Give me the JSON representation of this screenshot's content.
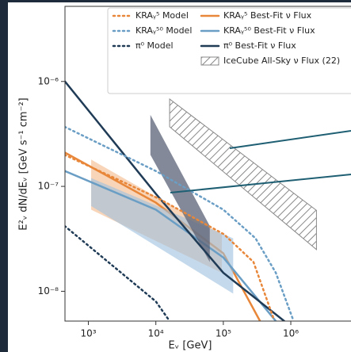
{
  "chart_data": {
    "type": "line",
    "x_label": "Eᵥ [GeV]",
    "y_label": "E²ᵥ dN/dEᵥ [GeV s⁻¹ cm⁻²]",
    "log_x": true,
    "log_y": true,
    "xlim": [
      450,
      7800000
    ],
    "ylim": [
      5.2e-09,
      5.2e-06
    ],
    "xticks": [
      {
        "value": 1000,
        "label": "10³"
      },
      {
        "value": 10000,
        "label": "10⁴"
      },
      {
        "value": 100000,
        "label": "10⁵"
      },
      {
        "value": 1000000,
        "label": "10⁶"
      }
    ],
    "yticks": [
      {
        "value": 1e-08,
        "label": "10⁻⁸"
      },
      {
        "value": 1e-07,
        "label": "10⁻⁷"
      },
      {
        "value": 1e-06,
        "label": "10⁻⁶"
      }
    ],
    "series": [
      {
        "name": "KRAᵧ⁵ Model",
        "style": "dotted",
        "color": "#e8873a",
        "x": [
          444,
          10800,
          102000,
          280000,
          550000
        ],
        "values": [
          2e-07,
          7.7e-08,
          3.5e-08,
          1.9e-08,
          5.6e-09
        ]
      },
      {
        "name": "KRAᵧ⁵⁰ Model",
        "style": "dotted",
        "color": "#6a9ec5",
        "x": [
          444,
          10000,
          100000,
          300000,
          600000,
          1100000
        ],
        "values": [
          3.7e-07,
          1.4e-07,
          6e-08,
          3.2e-08,
          1.5e-08,
          5.2e-09
        ]
      },
      {
        "name": "π⁰ Model",
        "style": "dotted",
        "color": "#1f3b56",
        "x": [
          444,
          10000,
          16000
        ],
        "values": [
          4.2e-08,
          8e-09,
          5.2e-09
        ]
      },
      {
        "name": "KRAᵧ⁵ Best-Fit ν Flux",
        "style": "solid",
        "color": "#e8873a",
        "x": [
          450,
          10000,
          100000,
          350000
        ],
        "values": [
          2.1e-07,
          7e-08,
          2.3e-08,
          5.2e-09
        ],
        "band": {
          "x": [
            1100,
            95000
          ],
          "lower": [
            6e-08,
            1.5e-08
          ],
          "upper": [
            1.8e-07,
            3.5e-08
          ]
        }
      },
      {
        "name": "KRAᵧ⁵⁰ Best-Fit ν Flux",
        "style": "solid",
        "color": "#6a9ec5",
        "x": [
          450,
          10000,
          100000,
          600000
        ],
        "values": [
          1.4e-07,
          6e-08,
          2.1e-08,
          5.2e-09
        ],
        "band": {
          "x": [
            1100,
            140000
          ],
          "lower": [
            6.5e-08,
            9.5e-09
          ],
          "upper": [
            1.2e-07,
            3.2e-08
          ]
        }
      },
      {
        "name": "π⁰ Best-Fit ν Flux",
        "style": "solid",
        "color": "#1f3b56",
        "x": [
          450,
          10000,
          100000,
          800000
        ],
        "values": [
          1e-06,
          8.5e-08,
          1.5e-08,
          5.2e-09
        ],
        "band": {
          "x": [
            8300,
            63000
          ],
          "lower": [
            2e-07,
            1.9e-08
          ],
          "upper": [
            4.8e-07,
            4.2e-08
          ]
        }
      },
      {
        "name": "IceCube All-Sky ν Flux (22)",
        "style": "hatched",
        "color": "#888888",
        "x": [
          16000,
          2400000
        ],
        "lower": [
          3.7e-07,
          2.5e-08
        ],
        "upper": [
          6.8e-07,
          5.9e-08
        ]
      }
    ]
  }
}
